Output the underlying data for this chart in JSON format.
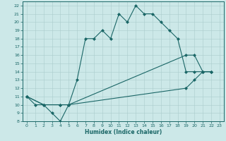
{
  "xlabel": "Humidex (Indice chaleur)",
  "background_color": "#cce8e8",
  "grid_color": "#aacccc",
  "line_color": "#1a6666",
  "xlim": [
    -0.5,
    23.5
  ],
  "ylim": [
    8,
    22.5
  ],
  "xticks": [
    0,
    1,
    2,
    3,
    4,
    5,
    6,
    7,
    8,
    9,
    10,
    11,
    12,
    13,
    14,
    15,
    16,
    17,
    18,
    19,
    20,
    21,
    22,
    23
  ],
  "yticks": [
    8,
    9,
    10,
    11,
    12,
    13,
    14,
    15,
    16,
    17,
    18,
    19,
    20,
    21,
    22
  ],
  "series": [
    {
      "x": [
        0,
        1,
        2,
        3,
        4,
        5,
        6,
        7,
        8,
        9,
        10,
        11,
        12,
        13,
        14,
        15,
        16,
        17,
        18,
        19,
        20,
        21,
        22
      ],
      "y": [
        11,
        10,
        10,
        9,
        8,
        10,
        13,
        18,
        18,
        19,
        18,
        21,
        20,
        22,
        21,
        21,
        20,
        19,
        18,
        14,
        14,
        14,
        14
      ]
    },
    {
      "x": [
        0,
        2,
        4,
        5,
        19,
        20,
        21,
        22
      ],
      "y": [
        11,
        10,
        10,
        10,
        16,
        16,
        14,
        14
      ]
    },
    {
      "x": [
        0,
        2,
        4,
        5,
        19,
        20,
        21,
        22
      ],
      "y": [
        11,
        10,
        10,
        10,
        12,
        13,
        14,
        14
      ]
    }
  ]
}
